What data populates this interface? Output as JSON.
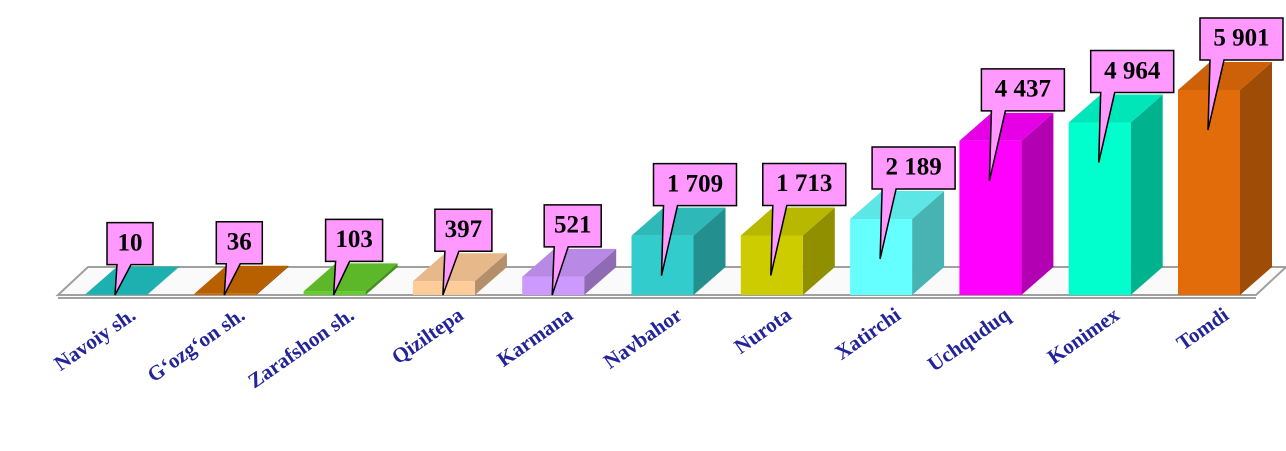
{
  "chart_data": {
    "type": "bar3d",
    "categories": [
      "Navoiy sh.",
      "G‘ozg‘on sh.",
      "Zarafshon sh.",
      "Qiziltepa",
      "Karmana",
      "Navbahor",
      "Nurota",
      "Xatirchi",
      "Uchquduq",
      "Konimex",
      "Tomdi"
    ],
    "values": [
      10,
      36,
      103,
      397,
      521,
      1709,
      1713,
      2189,
      4437,
      4964,
      5901
    ],
    "value_labels": [
      "10",
      "36",
      "103",
      "397",
      "521",
      "1 709",
      "1 713",
      "2 189",
      "4 437",
      "4 964",
      "5 901"
    ],
    "colors": [
      "#20c4c4",
      "#cc6a00",
      "#66cc2e",
      "#ffcc99",
      "#cc99ff",
      "#33cccc",
      "#cccc00",
      "#66ffff",
      "#ff00ff",
      "#00ffcc",
      "#e36c0a"
    ],
    "label_color": "#23239a",
    "callout_color": "#ff99ff"
  }
}
